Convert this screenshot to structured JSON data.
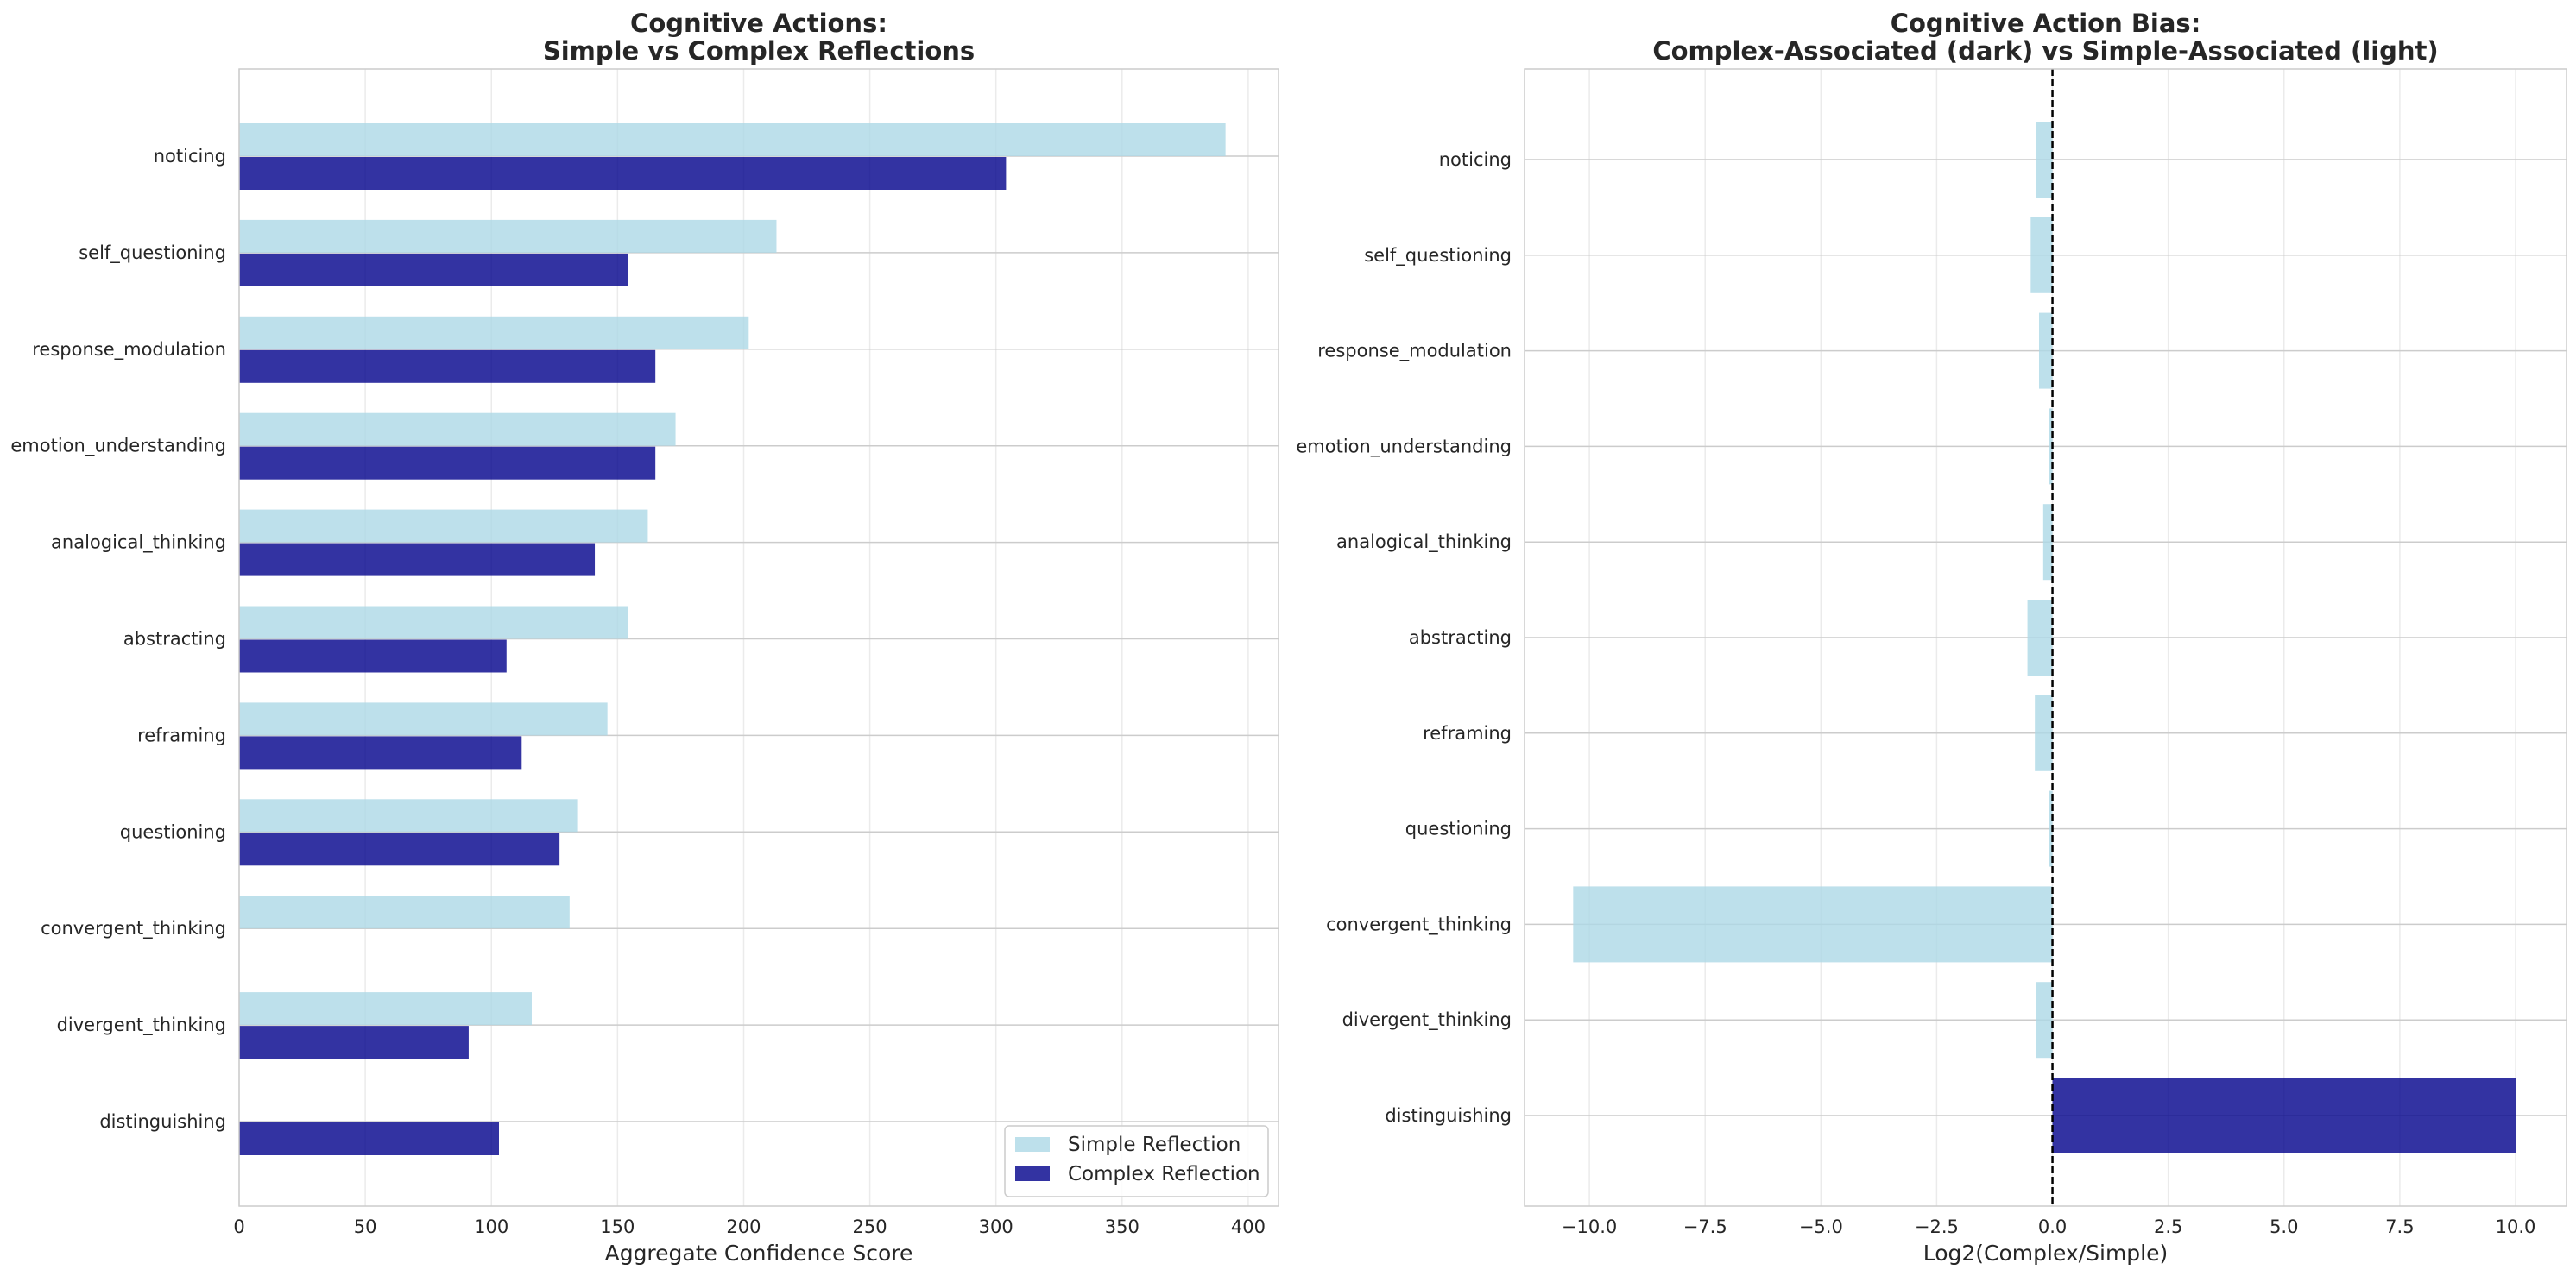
{
  "chart_data": [
    {
      "type": "bar",
      "orientation": "horizontal",
      "title": "Cognitive Actions:\nSimple vs Complex Reflections",
      "xlabel": "Aggregate Confidence Score",
      "ylabel": "",
      "xlim": [
        0,
        412
      ],
      "xticks": [
        0,
        50,
        100,
        150,
        200,
        250,
        300,
        350,
        400
      ],
      "grid": true,
      "legend": "bottom-right",
      "categories": [
        "noticing",
        "self_questioning",
        "response_modulation",
        "emotion_understanding",
        "analogical_thinking",
        "abstracting",
        "reframing",
        "questioning",
        "convergent_thinking",
        "divergent_thinking",
        "distinguishing"
      ],
      "series": [
        {
          "name": "Simple Reflection",
          "color": "#add8e6",
          "values": [
            391,
            213,
            202,
            173,
            162,
            154,
            146,
            134,
            131,
            116,
            0
          ]
        },
        {
          "name": "Complex Reflection",
          "color": "#00008b",
          "values": [
            304,
            154,
            165,
            165,
            141,
            106,
            112,
            127,
            0,
            91,
            103
          ]
        }
      ]
    },
    {
      "type": "bar",
      "orientation": "horizontal",
      "title": "Cognitive Action Bias:\nComplex-Associated (dark) vs Simple-Associated (light)",
      "xlabel": "Log2(Complex/Simple)",
      "ylabel": "",
      "xlim": [
        -11.4,
        11.1
      ],
      "xticks": [
        -10.0,
        -7.5,
        -5.0,
        -2.5,
        0.0,
        2.5,
        5.0,
        7.5,
        10.0
      ],
      "grid": true,
      "reference_line": 0,
      "categories": [
        "noticing",
        "self_questioning",
        "response_modulation",
        "emotion_understanding",
        "analogical_thinking",
        "abstracting",
        "reframing",
        "questioning",
        "convergent_thinking",
        "divergent_thinking",
        "distinguishing"
      ],
      "values": [
        -0.36,
        -0.47,
        -0.29,
        -0.07,
        -0.2,
        -0.54,
        -0.38,
        -0.08,
        -10.35,
        -0.35,
        10.0
      ],
      "colors": {
        "complex": "#00008b",
        "simple": "#add8e6"
      }
    }
  ]
}
